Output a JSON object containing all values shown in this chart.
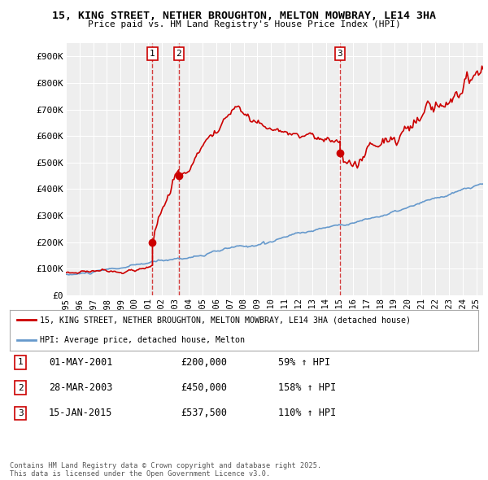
{
  "title1": "15, KING STREET, NETHER BROUGHTON, MELTON MOWBRAY, LE14 3HA",
  "title2": "Price paid vs. HM Land Registry's House Price Index (HPI)",
  "xlim_start": 1995.0,
  "xlim_end": 2025.5,
  "ylim": [
    0,
    950000
  ],
  "yticks": [
    0,
    100000,
    200000,
    300000,
    400000,
    500000,
    600000,
    700000,
    800000,
    900000
  ],
  "ytick_labels": [
    "£0",
    "£100K",
    "£200K",
    "£300K",
    "£400K",
    "£500K",
    "£600K",
    "£700K",
    "£800K",
    "£900K"
  ],
  "red_line_color": "#cc0000",
  "blue_line_color": "#6699cc",
  "background_color": "#ffffff",
  "plot_bg_color": "#eeeeee",
  "grid_color": "#ffffff",
  "legend_label_red": "15, KING STREET, NETHER BROUGHTON, MELTON MOWBRAY, LE14 3HA (detached house)",
  "legend_label_blue": "HPI: Average price, detached house, Melton",
  "transaction1_date": "01-MAY-2001",
  "transaction1_price": "£200,000",
  "transaction1_hpi": "59% ↑ HPI",
  "transaction1_x": 2001.33,
  "transaction1_y": 200000,
  "transaction2_date": "28-MAR-2003",
  "transaction2_price": "£450,000",
  "transaction2_hpi": "158% ↑ HPI",
  "transaction2_x": 2003.25,
  "transaction2_y": 450000,
  "transaction3_date": "15-JAN-2015",
  "transaction3_price": "£537,500",
  "transaction3_hpi": "110% ↑ HPI",
  "transaction3_x": 2015.04,
  "transaction3_y": 537500,
  "footer_text": "Contains HM Land Registry data © Crown copyright and database right 2025.\nThis data is licensed under the Open Government Licence v3.0.",
  "xticks": [
    1995,
    1996,
    1997,
    1998,
    1999,
    2000,
    2001,
    2002,
    2003,
    2004,
    2005,
    2006,
    2007,
    2008,
    2009,
    2010,
    2011,
    2012,
    2013,
    2014,
    2015,
    2016,
    2017,
    2018,
    2019,
    2020,
    2021,
    2022,
    2023,
    2024,
    2025
  ]
}
